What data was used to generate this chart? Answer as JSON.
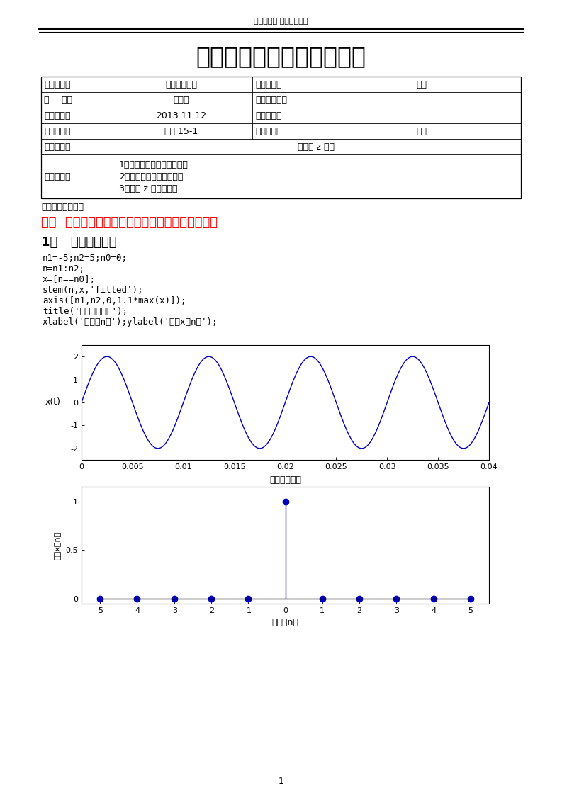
{
  "page_title_university": "塔里木大学 信息工程学院",
  "page_title_main": "数字信号处理课程实验报告",
  "table_rows": [
    [
      "课程名称：",
      "数字信号处理",
      "任课教师：",
      "姚娜"
    ],
    [
      "机    房：",
      "逸夫楼",
      "计算机编号：",
      ""
    ],
    [
      "实验日期：",
      "2013.11.12",
      "实验成绩：",
      ""
    ],
    [
      "实验班级：",
      "通信 15-1",
      "学生姓名：",
      "方刚"
    ],
    [
      "实验名称：",
      "卷积和 z 变换",
      "",
      ""
    ],
    [
      "实验目的：",
      "1、掌握离散序列的基本运算\n2、掌握卷积的原理及应用\n3、掌握 z 变换的应用",
      "",
      ""
    ]
  ],
  "section_label": "实验步骤与内容：",
  "heading1": "一、  通过以下两个例子，了解常用离散序列的产生",
  "heading2": "1、   单位抽样序列",
  "code_lines": [
    "n1=-5;n2=5;n0=0;",
    "n=n1:n2;",
    "x=[n==n0];",
    "stem(n,x,'filled');",
    "axis([n1,n2,0,1.1*max(x)]);",
    "title('单位脉冲序列');",
    "xlabel('时间（n）');ylabel('幅度x（n）');"
  ],
  "sine_freq": 100,
  "sine_xlim": [
    0,
    0.04
  ],
  "sine_ylim": [
    -2.5,
    2.5
  ],
  "sine_yticks": [
    -2,
    -1,
    0,
    1,
    2
  ],
  "sine_xticks": [
    0,
    0.005,
    0.01,
    0.015,
    0.02,
    0.025,
    0.03,
    0.035,
    0.04
  ],
  "sine_xtick_labels": [
    "0",
    "0.005",
    "0.01",
    "0.015",
    "0.02",
    "0.025",
    "0.03",
    "0.035",
    "0.04"
  ],
  "sine_ylabel": "x(t)",
  "sine_color": "#0000BB",
  "stem_title": "单位脉冲序列",
  "stem_xlabel": "时间（n）",
  "stem_ylabel": "幅度x（n）",
  "stem_n1": -5,
  "stem_n2": 5,
  "stem_n0": 0,
  "stem_color": "#0000BB",
  "page_number": "1",
  "bg_color": "#ffffff",
  "line_color": "#000000"
}
